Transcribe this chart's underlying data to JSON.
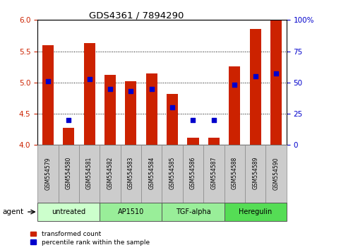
{
  "title": "GDS4361 / 7894290",
  "samples": [
    "GSM554579",
    "GSM554580",
    "GSM554581",
    "GSM554582",
    "GSM554583",
    "GSM554584",
    "GSM554585",
    "GSM554586",
    "GSM554587",
    "GSM554588",
    "GSM554589",
    "GSM554590"
  ],
  "transformed_count": [
    5.6,
    4.28,
    5.63,
    5.12,
    5.02,
    5.15,
    4.82,
    4.12,
    4.12,
    5.26,
    5.86,
    6.0
  ],
  "percentile_rank": [
    51,
    20,
    53,
    45,
    43,
    45,
    30,
    20,
    20,
    48,
    55,
    57
  ],
  "ylim": [
    4.0,
    6.0
  ],
  "yticks": [
    4.0,
    4.5,
    5.0,
    5.5,
    6.0
  ],
  "right_yticks": [
    0,
    25,
    50,
    75,
    100
  ],
  "right_ylabels": [
    "0",
    "25",
    "50",
    "75",
    "100%"
  ],
  "bar_color": "#cc2200",
  "dot_color": "#0000cc",
  "bar_width": 0.55,
  "agent_groups": [
    {
      "label": "untreated",
      "indices": [
        0,
        1,
        2
      ],
      "color": "#ccffcc"
    },
    {
      "label": "AP1510",
      "indices": [
        3,
        4,
        5
      ],
      "color": "#99ee99"
    },
    {
      "label": "TGF-alpha",
      "indices": [
        6,
        7,
        8
      ],
      "color": "#99ee99"
    },
    {
      "label": "Heregulin",
      "indices": [
        9,
        10,
        11
      ],
      "color": "#55dd55"
    }
  ],
  "xlabel_agent": "agent",
  "legend_red": "transformed count",
  "legend_blue": "percentile rank within the sample",
  "tick_label_color_left": "#cc2200",
  "tick_label_color_right": "#0000cc",
  "sample_bg": "#cccccc"
}
